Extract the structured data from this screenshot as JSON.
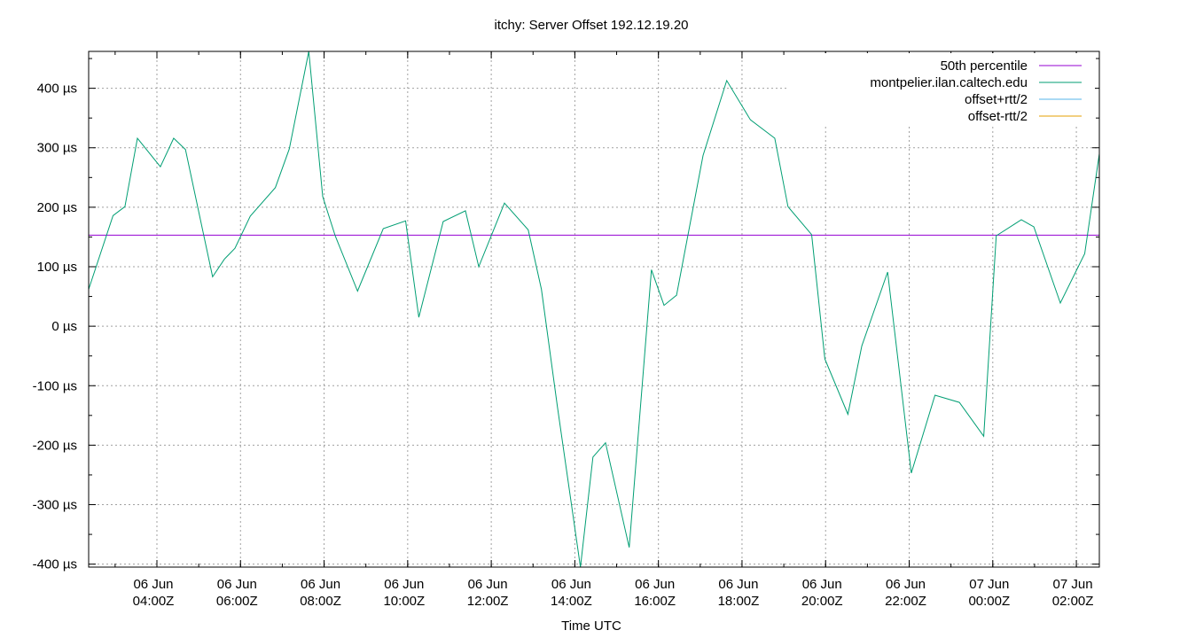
{
  "chart_data": {
    "type": "line",
    "title": "itchy: Server Offset 192.12.19.20",
    "xlabel": "Time UTC",
    "ylabel": "",
    "y_unit": "µs",
    "ylim": [
      -405,
      462
    ],
    "xlim": [
      "06 Jun 02:22Z",
      "07 Jun 02:33Z"
    ],
    "grid": true,
    "legend_position": "top-right",
    "y_ticks": [
      {
        "value": 400,
        "label": "400 µs"
      },
      {
        "value": 300,
        "label": "300 µs"
      },
      {
        "value": 200,
        "label": "200 µs"
      },
      {
        "value": 100,
        "label": "100 µs"
      },
      {
        "value": 0,
        "label": "0 µs"
      },
      {
        "value": -100,
        "label": "-100 µs"
      },
      {
        "value": -200,
        "label": "-200 µs"
      },
      {
        "value": -300,
        "label": "-300 µs"
      },
      {
        "value": -400,
        "label": "-400 µs"
      }
    ],
    "x_ticks": [
      {
        "time": "06 Jun 04:00Z",
        "line1": "06 Jun",
        "line2": "04:00Z"
      },
      {
        "time": "06 Jun 06:00Z",
        "line1": "06 Jun",
        "line2": "06:00Z"
      },
      {
        "time": "06 Jun 08:00Z",
        "line1": "06 Jun",
        "line2": "08:00Z"
      },
      {
        "time": "06 Jun 10:00Z",
        "line1": "06 Jun",
        "line2": "10:00Z"
      },
      {
        "time": "06 Jun 12:00Z",
        "line1": "06 Jun",
        "line2": "12:00Z"
      },
      {
        "time": "06 Jun 14:00Z",
        "line1": "06 Jun",
        "line2": "14:00Z"
      },
      {
        "time": "06 Jun 16:00Z",
        "line1": "06 Jun",
        "line2": "16:00Z"
      },
      {
        "time": "06 Jun 18:00Z",
        "line1": "06 Jun",
        "line2": "18:00Z"
      },
      {
        "time": "06 Jun 20:00Z",
        "line1": "06 Jun",
        "line2": "20:00Z"
      },
      {
        "time": "06 Jun 22:00Z",
        "line1": "06 Jun",
        "line2": "22:00Z"
      },
      {
        "time": "07 Jun 00:00Z",
        "line1": "07 Jun",
        "line2": "00:00Z"
      },
      {
        "time": "07 Jun 02:00Z",
        "line1": "07 Jun",
        "line2": "02:00Z"
      }
    ],
    "series": [
      {
        "name": "50th percentile",
        "color": "#9400d3",
        "constant": 153
      },
      {
        "name": "montpelier.ilan.caltech.edu",
        "color": "#009e73",
        "points": [
          [
            "06 Jun 02:22Z",
            62
          ],
          [
            "06 Jun 02:57Z",
            186
          ],
          [
            "06 Jun 03:14Z",
            201
          ],
          [
            "06 Jun 03:32Z",
            316
          ],
          [
            "06 Jun 04:05Z",
            268
          ],
          [
            "06 Jun 04:24Z",
            316
          ],
          [
            "06 Jun 04:41Z",
            297
          ],
          [
            "06 Jun 05:20Z",
            83
          ],
          [
            "06 Jun 05:37Z",
            113
          ],
          [
            "06 Jun 05:52Z",
            131
          ],
          [
            "06 Jun 06:14Z",
            185
          ],
          [
            "06 Jun 06:50Z",
            233
          ],
          [
            "06 Jun 07:10Z",
            298
          ],
          [
            "06 Jun 07:38Z",
            462
          ],
          [
            "06 Jun 07:58Z",
            218
          ],
          [
            "06 Jun 08:16Z",
            152
          ],
          [
            "06 Jun 08:48Z",
            59
          ],
          [
            "06 Jun 09:25Z",
            164
          ],
          [
            "06 Jun 09:57Z",
            177
          ],
          [
            "06 Jun 10:16Z",
            15
          ],
          [
            "06 Jun 10:51Z",
            176
          ],
          [
            "06 Jun 11:23Z",
            194
          ],
          [
            "06 Jun 11:42Z",
            100
          ],
          [
            "06 Jun 12:19Z",
            207
          ],
          [
            "06 Jun 12:53Z",
            162
          ],
          [
            "06 Jun 13:12Z",
            62
          ],
          [
            "06 Jun 13:35Z",
            -136
          ],
          [
            "06 Jun 14:08Z",
            -405
          ],
          [
            "06 Jun 14:26Z",
            -220
          ],
          [
            "06 Jun 14:44Z",
            -196
          ],
          [
            "06 Jun 15:18Z",
            -372
          ],
          [
            "06 Jun 15:50Z",
            95
          ],
          [
            "06 Jun 16:08Z",
            35
          ],
          [
            "06 Jun 16:26Z",
            52
          ],
          [
            "06 Jun 17:04Z",
            287
          ],
          [
            "06 Jun 17:38Z",
            413
          ],
          [
            "06 Jun 18:12Z",
            347
          ],
          [
            "06 Jun 18:47Z",
            316
          ],
          [
            "06 Jun 19:06Z",
            201
          ],
          [
            "06 Jun 19:40Z",
            154
          ],
          [
            "06 Jun 19:59Z",
            -55
          ],
          [
            "06 Jun 20:32Z",
            -148
          ],
          [
            "06 Jun 20:52Z",
            -33
          ],
          [
            "06 Jun 21:29Z",
            91
          ],
          [
            "06 Jun 22:03Z",
            -247
          ],
          [
            "06 Jun 22:37Z",
            -116
          ],
          [
            "06 Jun 23:12Z",
            -128
          ],
          [
            "06 Jun 23:47Z",
            -185
          ],
          [
            "07 Jun 00:05Z",
            152
          ],
          [
            "07 Jun 00:41Z",
            179
          ],
          [
            "07 Jun 00:59Z",
            167
          ],
          [
            "07 Jun 01:37Z",
            39
          ],
          [
            "07 Jun 02:12Z",
            122
          ],
          [
            "07 Jun 02:33Z",
            290
          ]
        ]
      },
      {
        "name": "offset+rtt/2",
        "color": "#56b4e9",
        "points": []
      },
      {
        "name": "offset-rtt/2",
        "color": "#e69f00",
        "points": []
      }
    ]
  }
}
